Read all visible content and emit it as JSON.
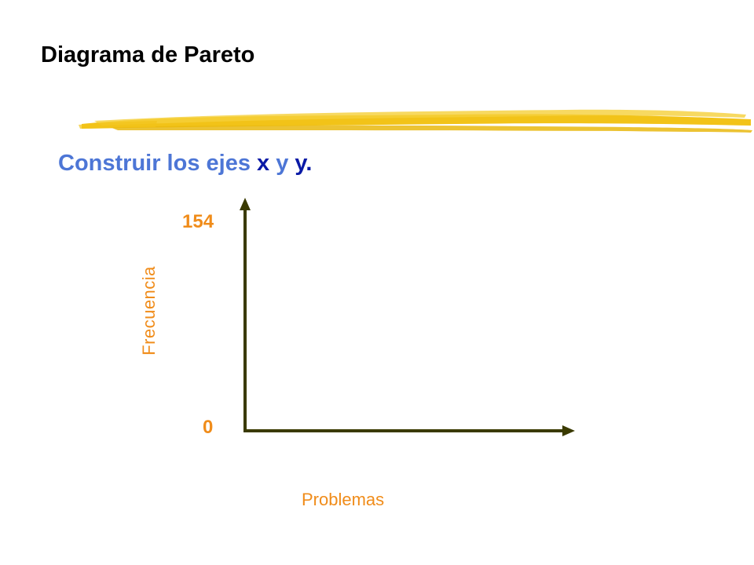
{
  "slide": {
    "title": "Diagrama de Pareto",
    "subtitle": {
      "prefix": "Construir los ejes ",
      "x": "x",
      "middle": " y ",
      "y": "y",
      "suffix": "."
    }
  },
  "colors": {
    "title": "#000000",
    "subtitle": "#4d76d6",
    "subtitle_accent": "#0a1aa6",
    "labels": "#f08c1a",
    "axes": "#3a3a00",
    "brush": "#f2c318"
  },
  "chart_data": {
    "type": "bar",
    "categories": [],
    "values": [],
    "title": "",
    "xlabel": "Problemas",
    "ylabel": "Frecuencia",
    "ylim": [
      0,
      154
    ],
    "yticks": [
      "154",
      "0"
    ],
    "grid": false
  }
}
